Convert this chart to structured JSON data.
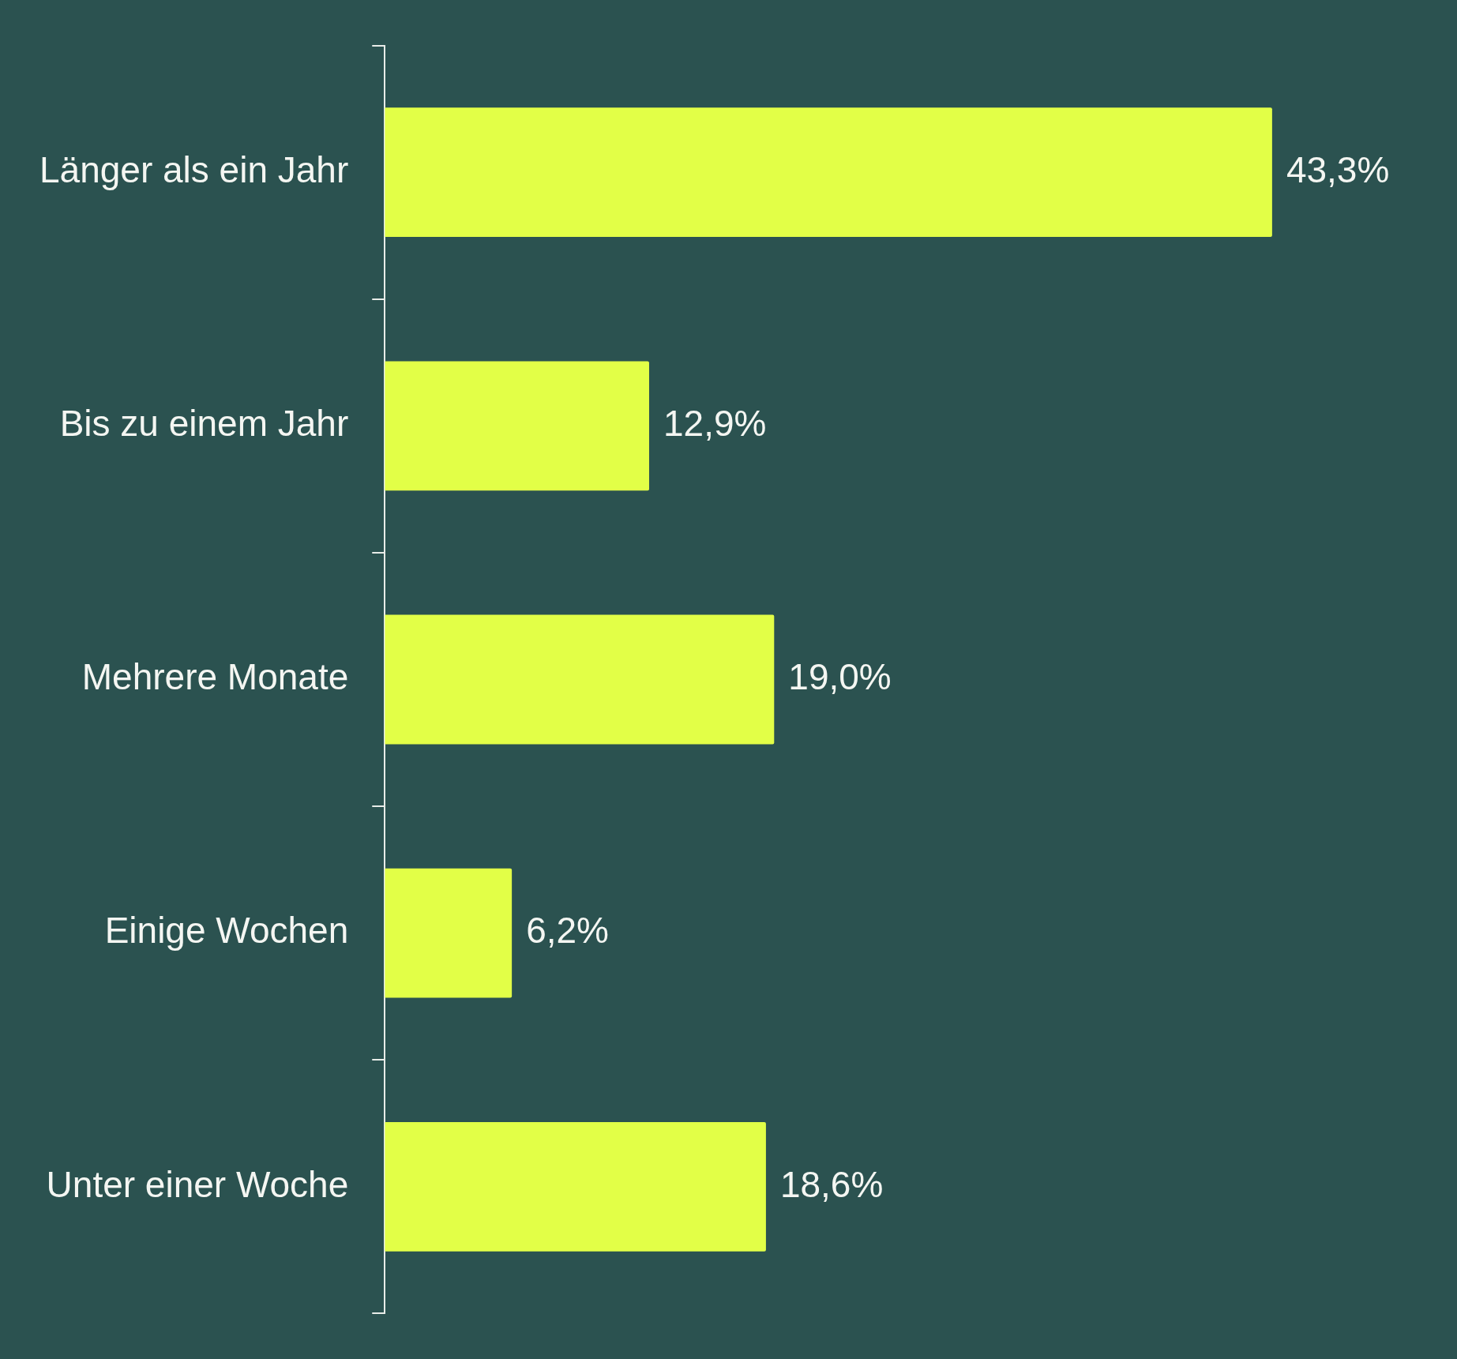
{
  "chart_data": {
    "type": "bar",
    "orientation": "horizontal",
    "categories": [
      "Länger als ein Jahr",
      "Bis zu einem Jahr",
      "Mehrere Monate",
      "Einige Wochen",
      "Unter einer Woche"
    ],
    "values": [
      43.3,
      12.9,
      19.0,
      6.2,
      18.6
    ],
    "value_labels": [
      "43,3%",
      "12,9%",
      "19,0%",
      "6,2%",
      "18,6%"
    ],
    "color": "#e2ff47",
    "grid": false,
    "legend": false,
    "tick_labels": "y"
  }
}
